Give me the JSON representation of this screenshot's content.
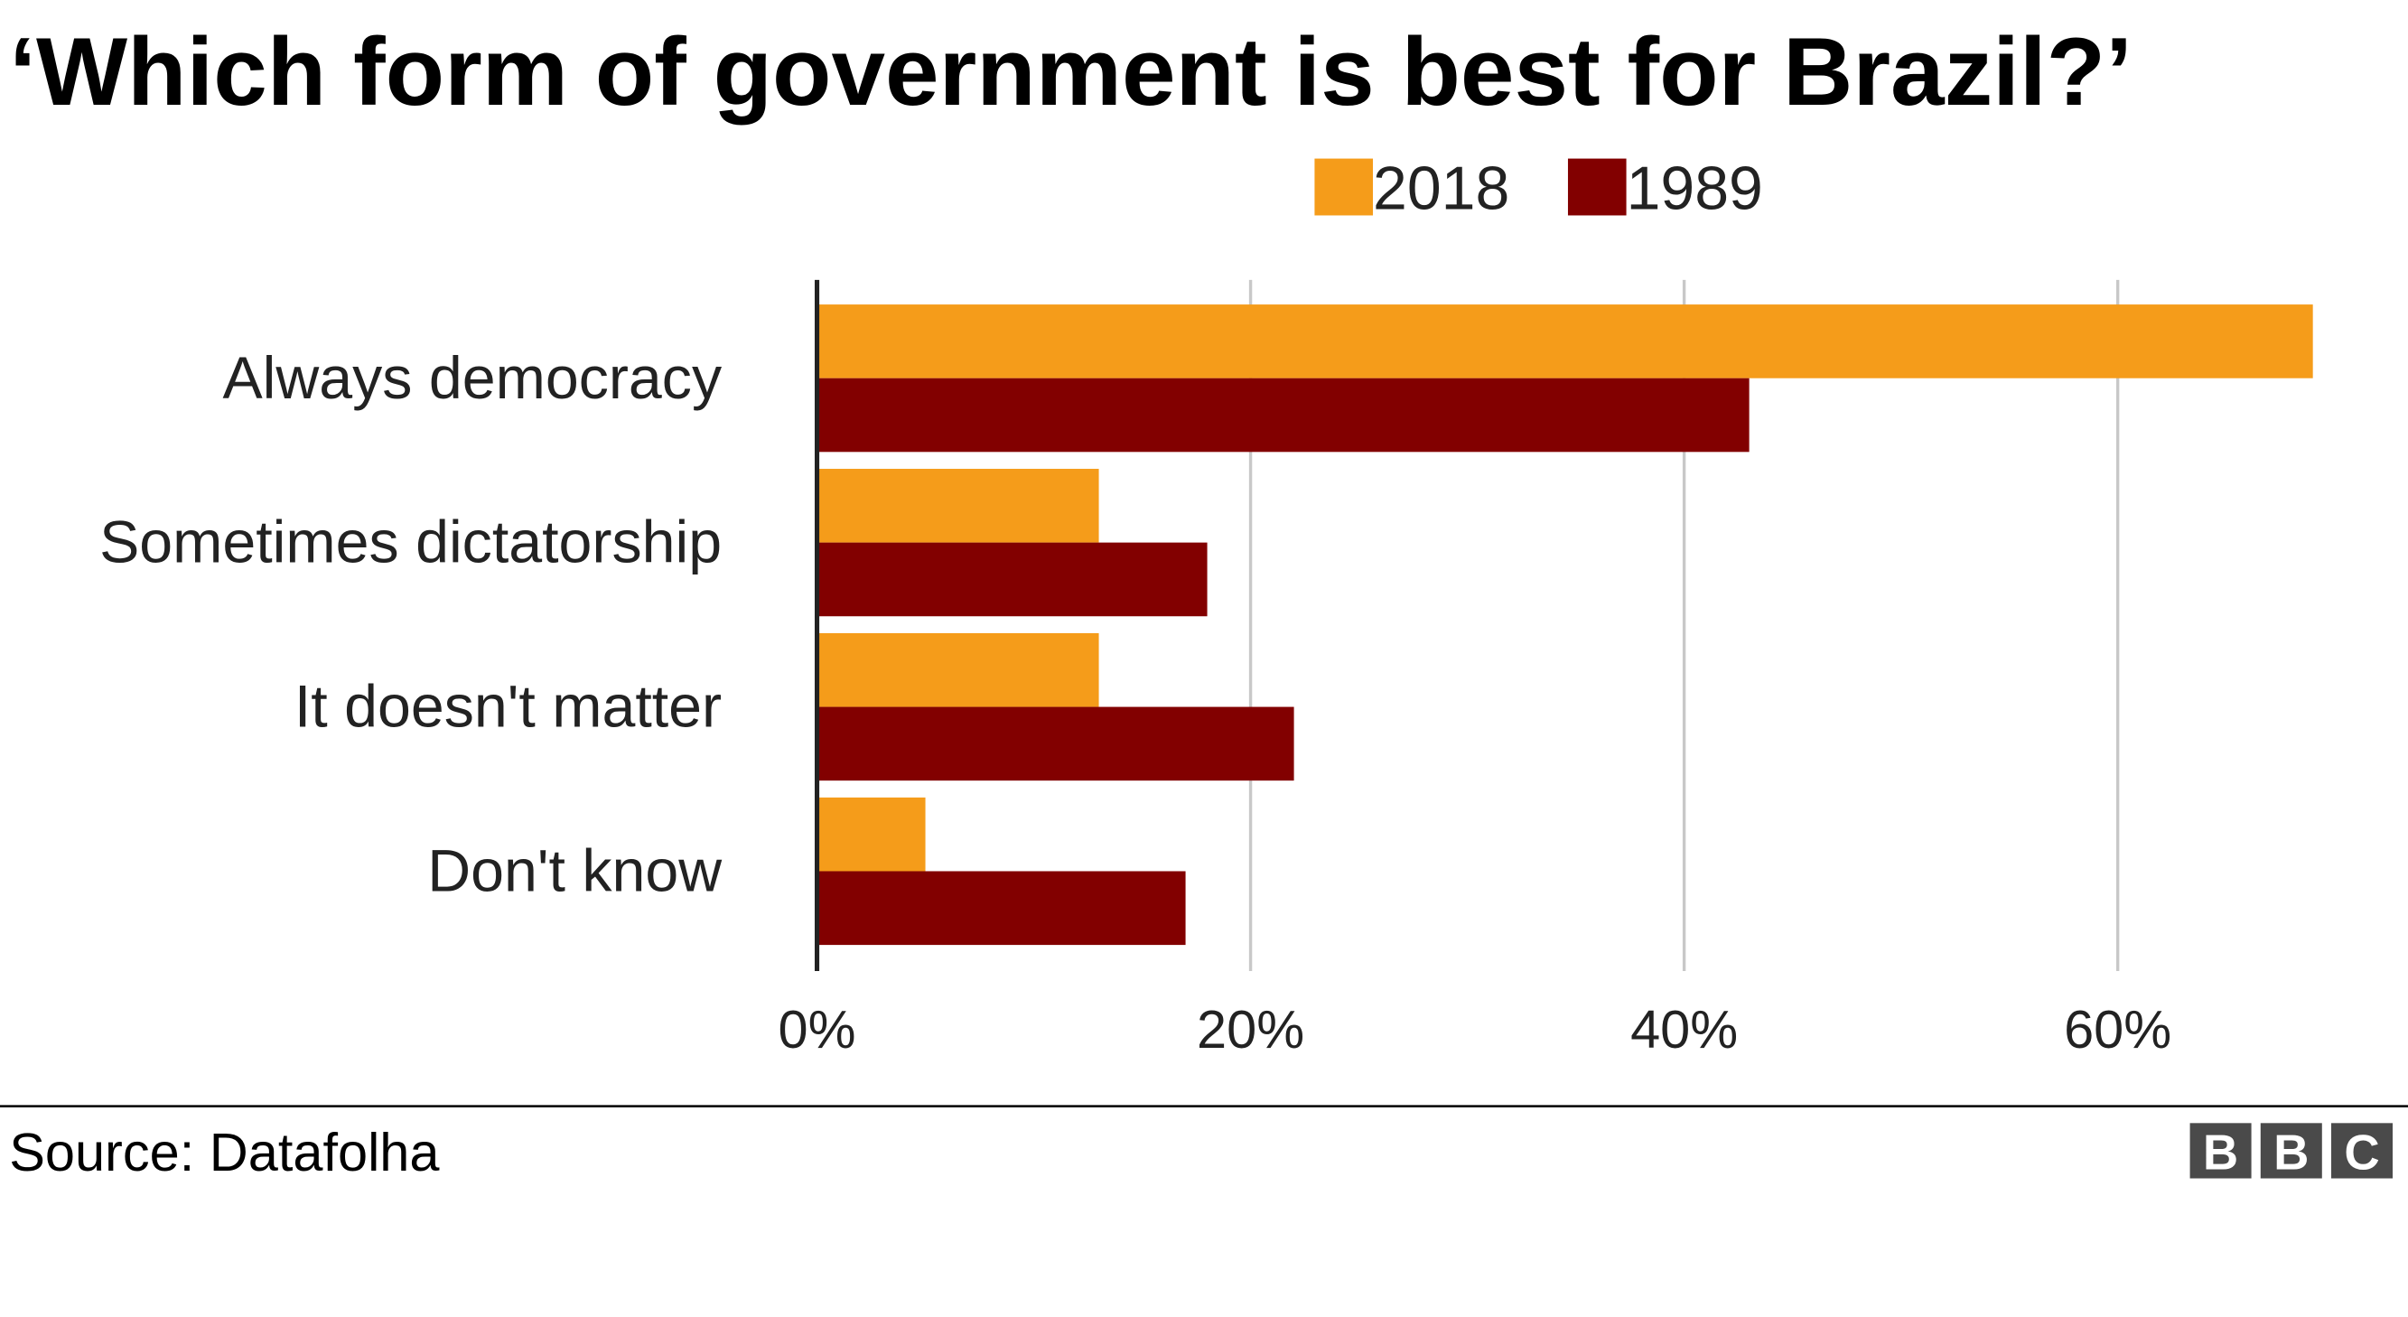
{
  "chart_data": {
    "type": "bar",
    "orientation": "horizontal",
    "title": "‘Which form of government is best for Brazil?’",
    "categories": [
      "Always democracy",
      "Sometimes dictatorship",
      "It doesn't matter",
      "Don't know"
    ],
    "series": [
      {
        "name": "2018",
        "color": "#f59c1a",
        "values": [
          69,
          13,
          13,
          5
        ]
      },
      {
        "name": "1989",
        "color": "#820000",
        "values": [
          43,
          18,
          22,
          17
        ]
      }
    ],
    "xlim": [
      0,
      69
    ],
    "xticks": [
      0,
      20,
      40,
      60
    ],
    "xtick_labels": [
      "0%",
      "20%",
      "40%",
      "60%"
    ],
    "grid": true,
    "legend": "top-right"
  },
  "footer": {
    "source": "Source: Datafolha",
    "logo": "BBC"
  }
}
